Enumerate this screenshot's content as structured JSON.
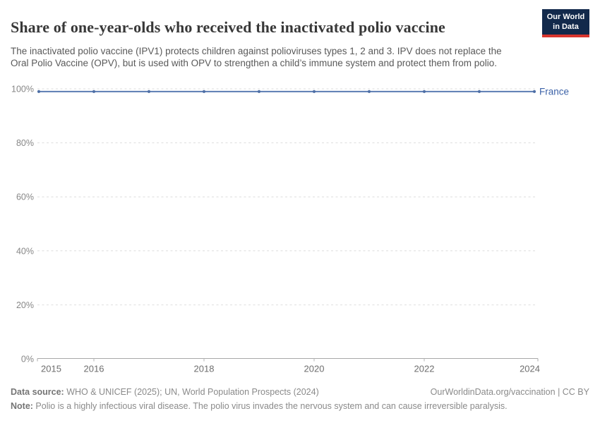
{
  "header": {
    "title": "Share of one-year-olds who received the inactivated polio vaccine",
    "subtitle": "The inactivated polio vaccine (IPV1) protects children against polioviruses types 1, 2 and 3. IPV does not replace the Oral Polio Vaccine (OPV), but is used with OPV to strengthen a child’s immune system and protect them from polio.",
    "logo": {
      "line1": "Our World",
      "line2": "in Data"
    }
  },
  "chart_data": {
    "type": "line",
    "title": "Share of one-year-olds who received the inactivated polio vaccine",
    "x": [
      2015,
      2016,
      2017,
      2018,
      2019,
      2020,
      2021,
      2022,
      2023,
      2024
    ],
    "series": [
      {
        "name": "France",
        "values": [
          99,
          99,
          99,
          99,
          99,
          99,
          99,
          99,
          99,
          99
        ]
      }
    ],
    "xlabel": "",
    "ylabel": "",
    "ylim": [
      0,
      100
    ],
    "yticks": [
      0,
      20,
      40,
      60,
      80,
      100
    ],
    "ytick_suffix": "%",
    "labeled_xticks": [
      2015,
      2016,
      2018,
      2020,
      2022,
      2024
    ],
    "grid": "horizontal-dashed",
    "legend": "line-end-label"
  },
  "colors": {
    "line": "#5b7cb2",
    "marker": "#4e6fa6",
    "series_label": "#3d63a8",
    "gridline": "#dedede",
    "axis": "#a8a8a8",
    "tick": "#b5b5b5",
    "ytick_label": "#878787",
    "xtick_label": "#6e6e6e",
    "logo_bg": "#12294b",
    "logo_accent": "#d8352e"
  },
  "footer": {
    "datasource_label": "Data source:",
    "datasource_text": " WHO & UNICEF (2025); UN, World Population Prospects (2024)",
    "note_label": "Note:",
    "note_text": " Polio is a highly infectious viral disease. The polio virus invades the nervous system and can cause irreversible paralysis.",
    "attribution": "OurWorldinData.org/vaccination | CC BY"
  }
}
